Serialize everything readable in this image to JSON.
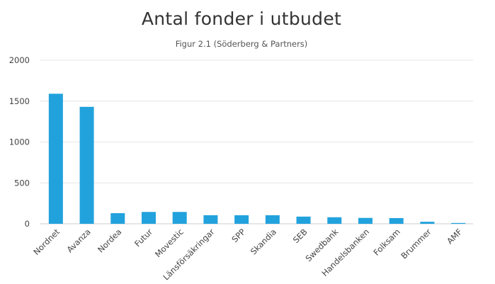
{
  "chart_data": {
    "type": "bar",
    "title": "Antal fonder i utbudet",
    "subtitle": "Figur 2.1 (Söderberg & Partners)",
    "xlabel": "",
    "ylabel": "",
    "categories": [
      "Nordnet",
      "Avanza",
      "Nordea",
      "Futur",
      "Movestic",
      "Länsförsäkringar",
      "SPP",
      "Skandia",
      "SEB",
      "Swedbank",
      "Handelsbanken",
      "Folksam",
      "Brummer",
      "AMF"
    ],
    "values": [
      1590,
      1430,
      130,
      145,
      145,
      105,
      105,
      105,
      88,
      80,
      72,
      70,
      25,
      10
    ],
    "ylim": [
      0,
      2000
    ],
    "yticks": [
      0,
      500,
      1000,
      1500,
      2000
    ],
    "grid": true,
    "legend": "none",
    "bar_color": "#22a2dd"
  }
}
